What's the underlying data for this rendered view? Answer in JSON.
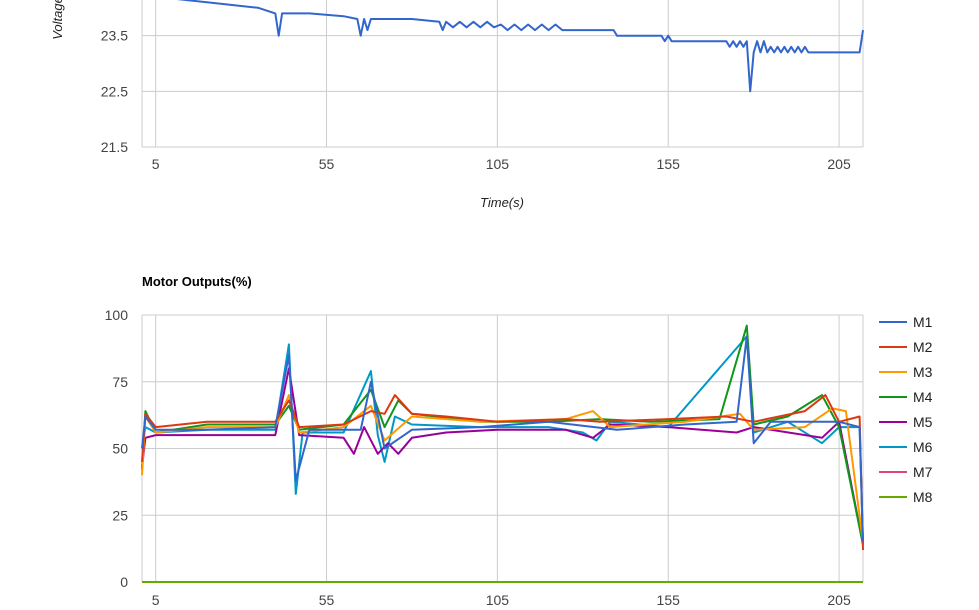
{
  "chart_data": [
    {
      "type": "line",
      "title": "",
      "xlabel": "Time(s)",
      "ylabel": "Voltage",
      "xlim": [
        1,
        212
      ],
      "ylim": [
        21.5,
        24.5
      ],
      "x_ticks": [
        "5",
        "55",
        "105",
        "155",
        "205"
      ],
      "y_ticks": [
        "21.5",
        "22.5",
        "23.5"
      ],
      "grid": true,
      "series": [
        {
          "color": "#3366cc",
          "points": [
            [
              5,
              24.2
            ],
            [
              20,
              24.1
            ],
            [
              35,
              24.0
            ],
            [
              40,
              23.9
            ],
            [
              41,
              23.5
            ],
            [
              42,
              23.9
            ],
            [
              50,
              23.9
            ],
            [
              60,
              23.85
            ],
            [
              64,
              23.8
            ],
            [
              65,
              23.5
            ],
            [
              66,
              23.8
            ],
            [
              67,
              23.6
            ],
            [
              68,
              23.8
            ],
            [
              80,
              23.8
            ],
            [
              88,
              23.75
            ],
            [
              89,
              23.6
            ],
            [
              90,
              23.75
            ],
            [
              92,
              23.65
            ],
            [
              94,
              23.75
            ],
            [
              96,
              23.65
            ],
            [
              98,
              23.75
            ],
            [
              100,
              23.65
            ],
            [
              102,
              23.75
            ],
            [
              104,
              23.65
            ],
            [
              106,
              23.7
            ],
            [
              108,
              23.6
            ],
            [
              110,
              23.7
            ],
            [
              112,
              23.6
            ],
            [
              114,
              23.7
            ],
            [
              116,
              23.6
            ],
            [
              118,
              23.7
            ],
            [
              120,
              23.6
            ],
            [
              122,
              23.7
            ],
            [
              124,
              23.6
            ],
            [
              139,
              23.6
            ],
            [
              140,
              23.5
            ],
            [
              153,
              23.5
            ],
            [
              154,
              23.4
            ],
            [
              155,
              23.5
            ],
            [
              156,
              23.4
            ],
            [
              172,
              23.4
            ],
            [
              173,
              23.3
            ],
            [
              174,
              23.4
            ],
            [
              175,
              23.3
            ],
            [
              176,
              23.4
            ],
            [
              177,
              23.3
            ],
            [
              178,
              23.4
            ],
            [
              179,
              22.5
            ],
            [
              180,
              23.2
            ],
            [
              181,
              23.4
            ],
            [
              182,
              23.2
            ],
            [
              183,
              23.4
            ],
            [
              184,
              23.2
            ],
            [
              185,
              23.3
            ],
            [
              186,
              23.2
            ],
            [
              187,
              23.3
            ],
            [
              188,
              23.2
            ],
            [
              189,
              23.3
            ],
            [
              190,
              23.2
            ],
            [
              191,
              23.3
            ],
            [
              192,
              23.2
            ],
            [
              193,
              23.3
            ],
            [
              194,
              23.2
            ],
            [
              195,
              23.3
            ],
            [
              196,
              23.2
            ],
            [
              211,
              23.2
            ],
            [
              212,
              23.6
            ]
          ]
        }
      ]
    },
    {
      "type": "line",
      "title": "Motor Outputs(%)",
      "xlabel": "",
      "ylabel": "",
      "xlim": [
        1,
        212
      ],
      "ylim": [
        0,
        100
      ],
      "x_ticks": [
        "5",
        "55",
        "105",
        "155",
        "205"
      ],
      "y_ticks": [
        "0",
        "25",
        "50",
        "75",
        "100"
      ],
      "grid": true,
      "legend": "right",
      "series": [
        {
          "name": "M1",
          "color": "#3366cc",
          "points": [
            [
              1,
              50
            ],
            [
              2,
              62
            ],
            [
              5,
              57
            ],
            [
              20,
              57
            ],
            [
              40,
              58
            ],
            [
              44,
              85
            ],
            [
              46,
              38
            ],
            [
              50,
              57
            ],
            [
              65,
              57
            ],
            [
              68,
              75
            ],
            [
              72,
              50
            ],
            [
              80,
              57
            ],
            [
              100,
              58
            ],
            [
              120,
              60
            ],
            [
              140,
              57
            ],
            [
              160,
              59
            ],
            [
              175,
              60
            ],
            [
              178,
              92
            ],
            [
              180,
              52
            ],
            [
              185,
              60
            ],
            [
              205,
              60
            ],
            [
              211,
              58
            ],
            [
              212,
              15
            ]
          ]
        },
        {
          "name": "M2",
          "color": "#dc3912",
          "points": [
            [
              1,
              45
            ],
            [
              2,
              63
            ],
            [
              5,
              58
            ],
            [
              20,
              60
            ],
            [
              40,
              60
            ],
            [
              44,
              68
            ],
            [
              47,
              58
            ],
            [
              60,
              59
            ],
            [
              68,
              64
            ],
            [
              72,
              63
            ],
            [
              75,
              70
            ],
            [
              80,
              63
            ],
            [
              90,
              62
            ],
            [
              105,
              60
            ],
            [
              125,
              61
            ],
            [
              135,
              60
            ],
            [
              155,
              61
            ],
            [
              172,
              62
            ],
            [
              180,
              60
            ],
            [
              195,
              64
            ],
            [
              201,
              70
            ],
            [
              205,
              60
            ],
            [
              211,
              62
            ],
            [
              212,
              12
            ]
          ]
        },
        {
          "name": "M3",
          "color": "#ff9900",
          "points": [
            [
              1,
              40
            ],
            [
              2,
              62
            ],
            [
              5,
              56
            ],
            [
              20,
              58
            ],
            [
              40,
              58
            ],
            [
              44,
              70
            ],
            [
              47,
              56
            ],
            [
              60,
              58
            ],
            [
              68,
              66
            ],
            [
              72,
              53
            ],
            [
              80,
              62
            ],
            [
              100,
              60
            ],
            [
              125,
              61
            ],
            [
              133,
              64
            ],
            [
              138,
              58
            ],
            [
              160,
              60
            ],
            [
              176,
              63
            ],
            [
              180,
              57
            ],
            [
              195,
              58
            ],
            [
              203,
              65
            ],
            [
              207,
              64
            ],
            [
              212,
              15
            ]
          ]
        },
        {
          "name": "M4",
          "color": "#109618",
          "points": [
            [
              1,
              42
            ],
            [
              2,
              64
            ],
            [
              5,
              56
            ],
            [
              20,
              59
            ],
            [
              40,
              59
            ],
            [
              44,
              66
            ],
            [
              47,
              57
            ],
            [
              60,
              59
            ],
            [
              68,
              72
            ],
            [
              72,
              58
            ],
            [
              76,
              68
            ],
            [
              80,
              63
            ],
            [
              100,
              60
            ],
            [
              120,
              60
            ],
            [
              135,
              61
            ],
            [
              150,
              60
            ],
            [
              170,
              61
            ],
            [
              178,
              96
            ],
            [
              180,
              59
            ],
            [
              190,
              62
            ],
            [
              200,
              70
            ],
            [
              205,
              58
            ],
            [
              212,
              14
            ]
          ]
        },
        {
          "name": "M5",
          "color": "#990099",
          "points": [
            [
              1,
              43
            ],
            [
              2,
              54
            ],
            [
              5,
              55
            ],
            [
              20,
              55
            ],
            [
              40,
              55
            ],
            [
              44,
              80
            ],
            [
              47,
              55
            ],
            [
              60,
              54
            ],
            [
              63,
              48
            ],
            [
              66,
              58
            ],
            [
              70,
              48
            ],
            [
              73,
              52
            ],
            [
              76,
              48
            ],
            [
              80,
              54
            ],
            [
              90,
              56
            ],
            [
              105,
              57
            ],
            [
              125,
              57
            ],
            [
              133,
              54
            ],
            [
              138,
              59
            ],
            [
              155,
              58
            ],
            [
              175,
              56
            ],
            [
              180,
              58
            ],
            [
              200,
              54
            ],
            [
              205,
              60
            ],
            [
              212,
              14
            ]
          ]
        },
        {
          "name": "M6",
          "color": "#0099c6",
          "points": [
            [
              1,
              50
            ],
            [
              2,
              58
            ],
            [
              5,
              56
            ],
            [
              20,
              57
            ],
            [
              40,
              57
            ],
            [
              44,
              89
            ],
            [
              46,
              33
            ],
            [
              48,
              56
            ],
            [
              60,
              56
            ],
            [
              68,
              79
            ],
            [
              70,
              55
            ],
            [
              72,
              45
            ],
            [
              75,
              62
            ],
            [
              80,
              59
            ],
            [
              100,
              58
            ],
            [
              120,
              58
            ],
            [
              130,
              56
            ],
            [
              134,
              53
            ],
            [
              138,
              60
            ],
            [
              155,
              58
            ],
            [
              178,
              92
            ],
            [
              180,
              56
            ],
            [
              190,
              60
            ],
            [
              200,
              52
            ],
            [
              205,
              58
            ],
            [
              211,
              58
            ],
            [
              212,
              15
            ]
          ]
        },
        {
          "name": "M7",
          "color": "#dd4477",
          "points": [
            [
              1,
              0
            ],
            [
              212,
              0
            ]
          ]
        },
        {
          "name": "M8",
          "color": "#66aa00",
          "points": [
            [
              1,
              0
            ],
            [
              212,
              0
            ]
          ]
        }
      ]
    }
  ]
}
